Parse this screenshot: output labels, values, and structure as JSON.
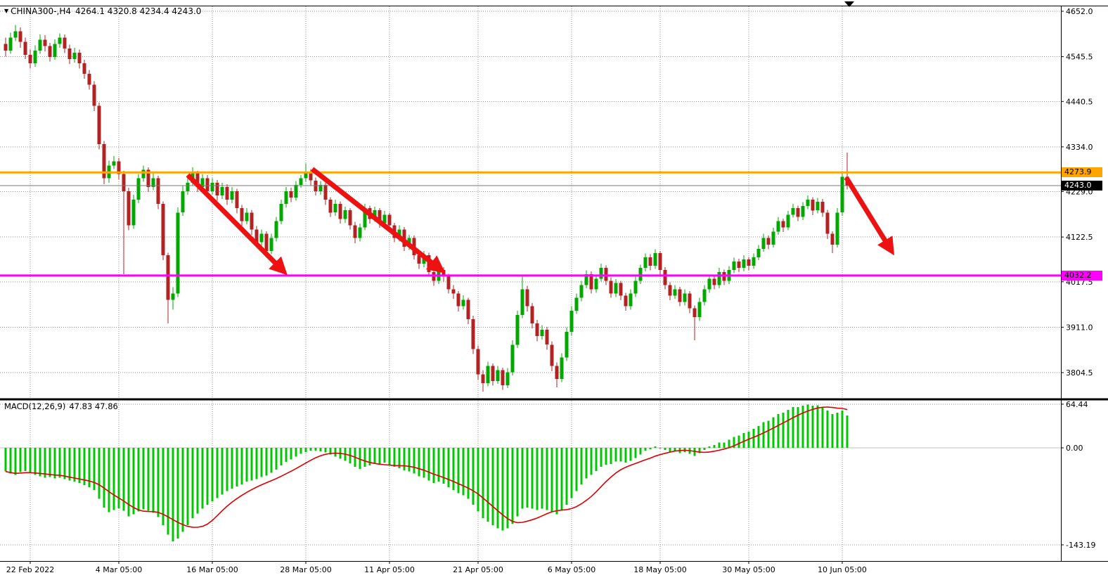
{
  "title": {
    "symbol": "CHINA300-,H4",
    "ohlc_text": "4264.1 4320.8 4234.4 4243.0"
  },
  "macd_label": {
    "name": "MACD(12,26,9)",
    "values": "47.83 47.86"
  },
  "chart_data": {
    "type": "candlestick",
    "subpanes": [
      "macd"
    ],
    "symbol": "CHINA300-,H4",
    "timeframe": "H4",
    "ohlc_current": {
      "open": 4264.1,
      "high": 4320.8,
      "low": 4234.4,
      "close": 4243.0
    },
    "macd_values": {
      "main": 47.83,
      "signal": 47.86
    },
    "y_axis_ticks": [
      4652.0,
      4545.5,
      4440.5,
      4334.0,
      4229.0,
      4122.5,
      4017.5,
      3911.0,
      3804.5
    ],
    "macd_axis_ticks": [
      64.44,
      0.0,
      -143.19
    ],
    "x_axis_labels": [
      {
        "label": "22 Feb 2022",
        "index": 5
      },
      {
        "label": "4 Mar 05:00",
        "index": 23
      },
      {
        "label": "16 Mar 05:00",
        "index": 42
      },
      {
        "label": "28 Mar 05:00",
        "index": 61
      },
      {
        "label": "11 Apr 05:00",
        "index": 78
      },
      {
        "label": "21 Apr 05:00",
        "index": 96
      },
      {
        "label": "6 May 05:00",
        "index": 115
      },
      {
        "label": "18 May 05:00",
        "index": 133
      },
      {
        "label": "30 May 05:00",
        "index": 151
      },
      {
        "label": "10 Jun 05:00",
        "index": 170
      }
    ],
    "hlines": [
      {
        "price": 4273.9,
        "color": "#FFA500",
        "label": "4273.9"
      },
      {
        "price": 4032.2,
        "color": "#FF00FF",
        "label": "4032.2"
      }
    ],
    "current_price": {
      "value": 4243.0,
      "label": "4243.0"
    },
    "arrows": [
      {
        "from_index": 37,
        "from_price": 4268,
        "to_index": 56.5,
        "to_price": 4042
      },
      {
        "from_index": 62.3,
        "from_price": 4282,
        "to_index": 88.5,
        "to_price": 4045
      },
      {
        "from_index": 170.8,
        "from_price": 4262,
        "to_index": 180,
        "to_price": 4090
      }
    ],
    "colors": {
      "up": "#00A800",
      "down": "#B22222",
      "macd": "#00C800",
      "signal": "#DD0000",
      "arrow": "#EE1111",
      "grid": "#8f8f8f",
      "resistance": "#FFA500",
      "support": "#FF00FF"
    },
    "macd_signal_period": 9,
    "candles": [
      [
        4575,
        4590,
        4546,
        4560
      ],
      [
        4560,
        4602,
        4552,
        4590
      ],
      [
        4590,
        4620,
        4582,
        4605
      ],
      [
        4605,
        4614,
        4566,
        4580
      ],
      [
        4580,
        4590,
        4540,
        4550
      ],
      [
        4550,
        4562,
        4518,
        4530
      ],
      [
        4530,
        4572,
        4522,
        4560
      ],
      [
        4560,
        4598,
        4552,
        4585
      ],
      [
        4585,
        4596,
        4558,
        4570
      ],
      [
        4570,
        4578,
        4534,
        4545
      ],
      [
        4545,
        4586,
        4538,
        4575
      ],
      [
        4575,
        4600,
        4566,
        4590
      ],
      [
        4590,
        4598,
        4554,
        4565
      ],
      [
        4565,
        4574,
        4528,
        4540
      ],
      [
        4540,
        4566,
        4532,
        4555
      ],
      [
        4555,
        4562,
        4518,
        4530
      ],
      [
        4530,
        4538,
        4494,
        4505
      ],
      [
        4505,
        4514,
        4468,
        4480
      ],
      [
        4480,
        4488,
        4418,
        4430
      ],
      [
        4430,
        4438,
        4328,
        4340
      ],
      [
        4340,
        4348,
        4246,
        4260
      ],
      [
        4260,
        4302,
        4250,
        4290
      ],
      [
        4290,
        4312,
        4282,
        4300
      ],
      [
        4300,
        4308,
        4258,
        4270
      ],
      [
        4270,
        4278,
        4035,
        4230
      ],
      [
        4230,
        4238,
        4138,
        4150
      ],
      [
        4150,
        4222,
        4142,
        4210
      ],
      [
        4210,
        4270,
        4202,
        4260
      ],
      [
        4260,
        4290,
        4252,
        4280
      ],
      [
        4280,
        4286,
        4228,
        4240
      ],
      [
        4240,
        4272,
        4232,
        4260
      ],
      [
        4260,
        4266,
        4188,
        4200
      ],
      [
        4200,
        4206,
        4068,
        4080
      ],
      [
        4080,
        4086,
        3920,
        3975
      ],
      [
        3975,
        4005,
        3952,
        3990
      ],
      [
        3990,
        4192,
        3982,
        4180
      ],
      [
        4180,
        4242,
        4172,
        4230
      ],
      [
        4230,
        4262,
        4222,
        4250
      ],
      [
        4250,
        4286,
        4242,
        4272
      ],
      [
        4272,
        4278,
        4228,
        4240
      ],
      [
        4240,
        4270,
        4232,
        4260
      ],
      [
        4260,
        4268,
        4218,
        4230
      ],
      [
        4230,
        4260,
        4222,
        4250
      ],
      [
        4250,
        4256,
        4208,
        4220
      ],
      [
        4220,
        4250,
        4212,
        4240
      ],
      [
        4240,
        4246,
        4198,
        4210
      ],
      [
        4210,
        4240,
        4202,
        4230
      ],
      [
        4230,
        4236,
        4178,
        4190
      ],
      [
        4190,
        4198,
        4148,
        4160
      ],
      [
        4160,
        4190,
        4152,
        4180
      ],
      [
        4180,
        4186,
        4128,
        4140
      ],
      [
        4140,
        4148,
        4098,
        4110
      ],
      [
        4110,
        4140,
        4102,
        4130
      ],
      [
        4130,
        4136,
        4075,
        4090
      ],
      [
        4090,
        4130,
        4082,
        4120
      ],
      [
        4120,
        4170,
        4112,
        4160
      ],
      [
        4160,
        4210,
        4152,
        4200
      ],
      [
        4200,
        4240,
        4192,
        4230
      ],
      [
        4230,
        4238,
        4204,
        4215
      ],
      [
        4215,
        4254,
        4208,
        4245
      ],
      [
        4245,
        4268,
        4238,
        4260
      ],
      [
        4260,
        4295,
        4252,
        4275
      ],
      [
        4275,
        4282,
        4244,
        4255
      ],
      [
        4255,
        4262,
        4220,
        4230
      ],
      [
        4230,
        4254,
        4222,
        4245
      ],
      [
        4245,
        4250,
        4198,
        4210
      ],
      [
        4210,
        4216,
        4170,
        4180
      ],
      [
        4180,
        4210,
        4172,
        4200
      ],
      [
        4200,
        4206,
        4154,
        4165
      ],
      [
        4165,
        4194,
        4156,
        4185
      ],
      [
        4185,
        4190,
        4140,
        4150
      ],
      [
        4150,
        4158,
        4108,
        4120
      ],
      [
        4120,
        4154,
        4112,
        4145
      ],
      [
        4145,
        4200,
        4138,
        4190
      ],
      [
        4190,
        4196,
        4154,
        4165
      ],
      [
        4165,
        4194,
        4158,
        4185
      ],
      [
        4185,
        4190,
        4144,
        4155
      ],
      [
        4155,
        4184,
        4148,
        4175
      ],
      [
        4175,
        4180,
        4138,
        4150
      ],
      [
        4150,
        4156,
        4110,
        4120
      ],
      [
        4120,
        4150,
        4112,
        4140
      ],
      [
        4140,
        4146,
        4090,
        4100
      ],
      [
        4100,
        4128,
        4092,
        4120
      ],
      [
        4120,
        4126,
        4070,
        4080
      ],
      [
        4080,
        4088,
        4048,
        4060
      ],
      [
        4060,
        4090,
        4052,
        4080
      ],
      [
        4080,
        4086,
        4030,
        4040
      ],
      [
        4040,
        4048,
        4008,
        4020
      ],
      [
        4020,
        4054,
        4012,
        4045
      ],
      [
        4045,
        4052,
        4018,
        4030
      ],
      [
        4030,
        4036,
        3990,
        4000
      ],
      [
        4000,
        4010,
        3978,
        3990
      ],
      [
        3990,
        3996,
        3948,
        3960
      ],
      [
        3960,
        3986,
        3952,
        3975
      ],
      [
        3975,
        3980,
        3918,
        3930
      ],
      [
        3930,
        3938,
        3848,
        3860
      ],
      [
        3860,
        3868,
        3788,
        3800
      ],
      [
        3800,
        3810,
        3760,
        3780
      ],
      [
        3780,
        3830,
        3772,
        3820
      ],
      [
        3820,
        3826,
        3774,
        3785
      ],
      [
        3785,
        3820,
        3778,
        3810
      ],
      [
        3810,
        3816,
        3764,
        3775
      ],
      [
        3775,
        3815,
        3768,
        3805
      ],
      [
        3805,
        3880,
        3798,
        3870
      ],
      [
        3870,
        3950,
        3862,
        3940
      ],
      [
        3940,
        4030,
        3932,
        4000
      ],
      [
        4000,
        4008,
        3948,
        3960
      ],
      [
        3960,
        3968,
        3908,
        3920
      ],
      [
        3920,
        3928,
        3878,
        3890
      ],
      [
        3890,
        3916,
        3882,
        3905
      ],
      [
        3905,
        3912,
        3858,
        3870
      ],
      [
        3870,
        3878,
        3808,
        3820
      ],
      [
        3820,
        3828,
        3770,
        3790
      ],
      [
        3790,
        3850,
        3782,
        3840
      ],
      [
        3840,
        3910,
        3832,
        3900
      ],
      [
        3900,
        3960,
        3892,
        3950
      ],
      [
        3950,
        3990,
        3942,
        3980
      ],
      [
        3980,
        4020,
        3972,
        4010
      ],
      [
        4010,
        4044,
        4002,
        4035
      ],
      [
        4035,
        4042,
        3990,
        4000
      ],
      [
        4000,
        4034,
        3992,
        4025
      ],
      [
        4025,
        4060,
        4018,
        4050
      ],
      [
        4050,
        4056,
        4010,
        4020
      ],
      [
        4020,
        4028,
        3980,
        3990
      ],
      [
        3990,
        4024,
        3982,
        4015
      ],
      [
        4015,
        4020,
        3974,
        3985
      ],
      [
        3985,
        3992,
        3950,
        3960
      ],
      [
        3960,
        4000,
        3952,
        3990
      ],
      [
        3990,
        4030,
        3982,
        4020
      ],
      [
        4020,
        4058,
        4012,
        4050
      ],
      [
        4050,
        4084,
        4042,
        4075
      ],
      [
        4075,
        4082,
        4044,
        4055
      ],
      [
        4055,
        4094,
        4048,
        4085
      ],
      [
        4085,
        4090,
        4034,
        4045
      ],
      [
        4045,
        4052,
        4000,
        4010
      ],
      [
        4010,
        4016,
        3974,
        3985
      ],
      [
        3985,
        4010,
        3978,
        4000
      ],
      [
        4000,
        4006,
        3960,
        3970
      ],
      [
        3970,
        4000,
        3962,
        3990
      ],
      [
        3990,
        3996,
        3944,
        3955
      ],
      [
        3955,
        3962,
        3880,
        3935
      ],
      [
        3935,
        3980,
        3926,
        3970
      ],
      [
        3970,
        4010,
        3962,
        4000
      ],
      [
        4000,
        4034,
        3992,
        4025
      ],
      [
        4025,
        4032,
        4000,
        4010
      ],
      [
        4010,
        4050,
        4002,
        4040
      ],
      [
        4040,
        4046,
        4010,
        4020
      ],
      [
        4020,
        4054,
        4012,
        4045
      ],
      [
        4045,
        4074,
        4038,
        4065
      ],
      [
        4065,
        4072,
        4040,
        4050
      ],
      [
        4050,
        4080,
        4042,
        4070
      ],
      [
        4070,
        4076,
        4044,
        4055
      ],
      [
        4055,
        4084,
        4048,
        4075
      ],
      [
        4075,
        4104,
        4068,
        4095
      ],
      [
        4095,
        4130,
        4088,
        4120
      ],
      [
        4120,
        4126,
        4094,
        4105
      ],
      [
        4105,
        4144,
        4098,
        4135
      ],
      [
        4135,
        4170,
        4128,
        4160
      ],
      [
        4160,
        4166,
        4134,
        4145
      ],
      [
        4145,
        4184,
        4138,
        4175
      ],
      [
        4175,
        4200,
        4168,
        4190
      ],
      [
        4190,
        4196,
        4160,
        4170
      ],
      [
        4170,
        4204,
        4162,
        4195
      ],
      [
        4195,
        4220,
        4188,
        4210
      ],
      [
        4210,
        4216,
        4174,
        4185
      ],
      [
        4185,
        4214,
        4178,
        4205
      ],
      [
        4205,
        4212,
        4170,
        4180
      ],
      [
        4180,
        4186,
        4118,
        4130
      ],
      [
        4130,
        4136,
        4085,
        4105
      ],
      [
        4105,
        4190,
        4098,
        4180
      ],
      [
        4180,
        4274,
        4172,
        4264
      ],
      [
        4264.1,
        4320.8,
        4234.4,
        4243.0
      ]
    ],
    "macd_main": [
      -35,
      -38,
      -40,
      -36,
      -34,
      -37,
      -40,
      -42,
      -44,
      -43,
      -45,
      -44,
      -46,
      -48,
      -50,
      -52,
      -55,
      -58,
      -62,
      -75,
      -88,
      -95,
      -92,
      -89,
      -93,
      -101,
      -98,
      -94,
      -91,
      -93,
      -96,
      -102,
      -114,
      -128,
      -138,
      -134,
      -124,
      -114,
      -104,
      -97,
      -90,
      -84,
      -79,
      -74,
      -69,
      -64,
      -60,
      -57,
      -54,
      -50,
      -48,
      -46,
      -43,
      -41,
      -37,
      -32,
      -26,
      -21,
      -17,
      -13,
      -9,
      -6,
      -4,
      -4,
      -5,
      -7,
      -10,
      -13,
      -16,
      -19,
      -23,
      -28,
      -31,
      -28,
      -26,
      -23,
      -24,
      -22,
      -25,
      -28,
      -30,
      -33,
      -35,
      -38,
      -42,
      -44,
      -48,
      -52,
      -50,
      -53,
      -58,
      -62,
      -67,
      -70,
      -75,
      -84,
      -94,
      -104,
      -109,
      -114,
      -119,
      -122,
      -119,
      -112,
      -101,
      -90,
      -88,
      -90,
      -92,
      -90,
      -92,
      -95,
      -98,
      -92,
      -84,
      -74,
      -64,
      -54,
      -45,
      -40,
      -34,
      -28,
      -25,
      -24,
      -20,
      -20,
      -22,
      -19,
      -15,
      -10,
      -4,
      -2,
      2,
      0,
      -3,
      -6,
      -5,
      -8,
      -6,
      -9,
      -12,
      -8,
      -3,
      2,
      4,
      8,
      8,
      12,
      16,
      18,
      22,
      24,
      28,
      32,
      38,
      40,
      45,
      50,
      52,
      56,
      60,
      60,
      62,
      64,
      62,
      63,
      60,
      55,
      50,
      52,
      55,
      47.83
    ]
  }
}
